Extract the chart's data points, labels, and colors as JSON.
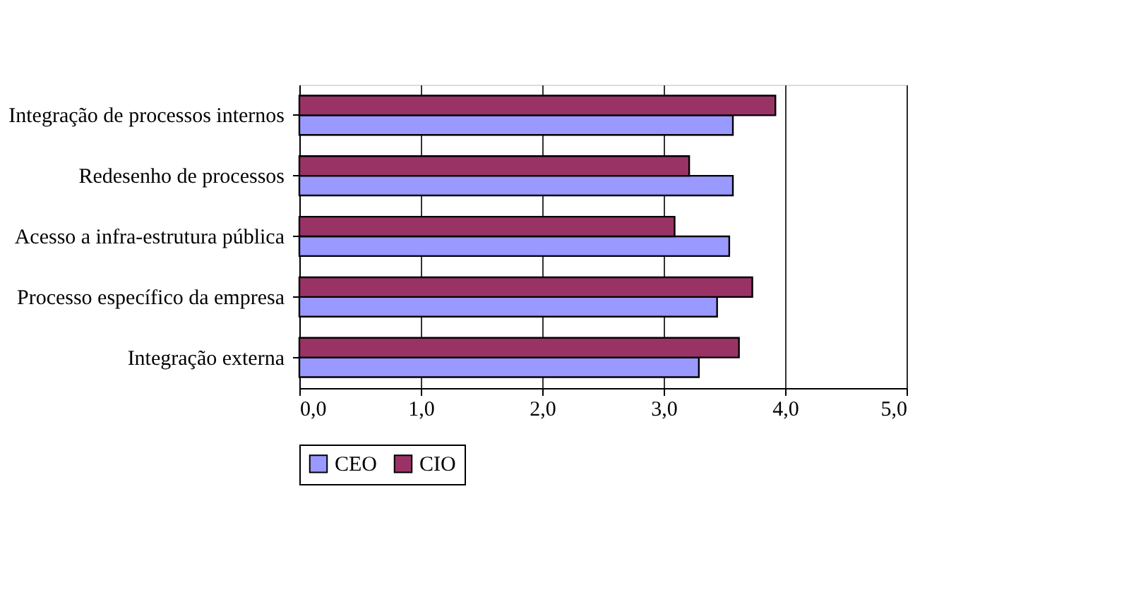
{
  "chart_data": {
    "type": "bar",
    "orientation": "horizontal",
    "categories": [
      "Integração de processos internos",
      "Redesenho de processos",
      "Acesso a infra-estrutura pública",
      "Processo específico da empresa",
      "Integração externa"
    ],
    "series": [
      {
        "name": "CEO",
        "color": "#9999ff",
        "values": [
          3.57,
          3.57,
          3.54,
          3.44,
          3.29
        ]
      },
      {
        "name": "CIO",
        "color": "#993366",
        "values": [
          3.92,
          3.21,
          3.09,
          3.73,
          3.62
        ]
      }
    ],
    "xlim": [
      0,
      5
    ],
    "xticks": [
      {
        "value": 0,
        "label": "0,0"
      },
      {
        "value": 1,
        "label": "1,0"
      },
      {
        "value": 2,
        "label": "2,0"
      },
      {
        "value": 3,
        "label": "3,0"
      },
      {
        "value": 4,
        "label": "4,0"
      },
      {
        "value": 5,
        "label": "5,0"
      }
    ],
    "grid": "x",
    "legend": "bottom"
  }
}
